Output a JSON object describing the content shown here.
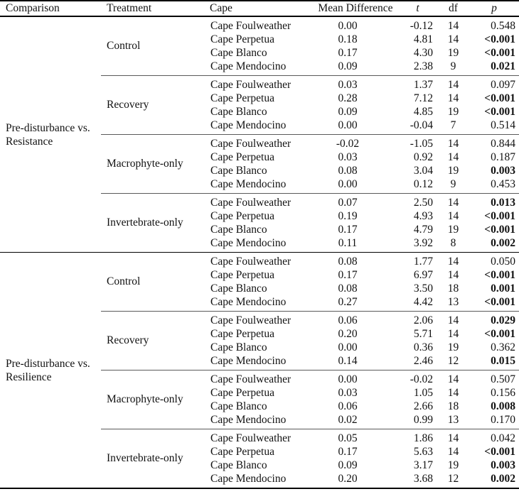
{
  "table": {
    "columns": [
      "Comparison",
      "Treatment",
      "Cape",
      "Mean Difference",
      "t",
      "df",
      "p"
    ],
    "sections": [
      {
        "comparison": "Pre-disturbance vs. Resistance",
        "treatments": [
          {
            "name": "Control",
            "rows": [
              {
                "cape": "Cape Foulweather",
                "mean_difference": "0.00",
                "t": "-0.12",
                "df": "14",
                "p": "0.548",
                "p_bold": false
              },
              {
                "cape": "Cape Perpetua",
                "mean_difference": "0.18",
                "t": "4.81",
                "df": "14",
                "p": "<0.001",
                "p_bold": true
              },
              {
                "cape": "Cape Blanco",
                "mean_difference": "0.17",
                "t": "4.30",
                "df": "19",
                "p": "<0.001",
                "p_bold": true
              },
              {
                "cape": "Cape Mendocino",
                "mean_difference": "0.09",
                "t": "2.38",
                "df": "9",
                "p": "0.021",
                "p_bold": true
              }
            ]
          },
          {
            "name": "Recovery",
            "rows": [
              {
                "cape": "Cape Foulweather",
                "mean_difference": "0.03",
                "t": "1.37",
                "df": "14",
                "p": "0.097",
                "p_bold": false
              },
              {
                "cape": "Cape Perpetua",
                "mean_difference": "0.28",
                "t": "7.12",
                "df": "14",
                "p": "<0.001",
                "p_bold": true
              },
              {
                "cape": "Cape Blanco",
                "mean_difference": "0.09",
                "t": "4.85",
                "df": "19",
                "p": "<0.001",
                "p_bold": true
              },
              {
                "cape": "Cape Mendocino",
                "mean_difference": "0.00",
                "t": "-0.04",
                "df": "7",
                "p": "0.514",
                "p_bold": false
              }
            ]
          },
          {
            "name": "Macrophyte-only",
            "rows": [
              {
                "cape": "Cape Foulweather",
                "mean_difference": "-0.02",
                "t": "-1.05",
                "df": "14",
                "p": "0.844",
                "p_bold": false
              },
              {
                "cape": "Cape Perpetua",
                "mean_difference": "0.03",
                "t": "0.92",
                "df": "14",
                "p": "0.187",
                "p_bold": false
              },
              {
                "cape": "Cape Blanco",
                "mean_difference": "0.08",
                "t": "3.04",
                "df": "19",
                "p": "0.003",
                "p_bold": true
              },
              {
                "cape": "Cape Mendocino",
                "mean_difference": "0.00",
                "t": "0.12",
                "df": "9",
                "p": "0.453",
                "p_bold": false
              }
            ]
          },
          {
            "name": "Invertebrate-only",
            "rows": [
              {
                "cape": "Cape Foulweather",
                "mean_difference": "0.07",
                "t": "2.50",
                "df": "14",
                "p": "0.013",
                "p_bold": true
              },
              {
                "cape": "Cape Perpetua",
                "mean_difference": "0.19",
                "t": "4.93",
                "df": "14",
                "p": "<0.001",
                "p_bold": true
              },
              {
                "cape": "Cape Blanco",
                "mean_difference": "0.17",
                "t": "4.79",
                "df": "19",
                "p": "<0.001",
                "p_bold": true
              },
              {
                "cape": "Cape Mendocino",
                "mean_difference": "0.11",
                "t": "3.92",
                "df": "8",
                "p": "0.002",
                "p_bold": true
              }
            ]
          }
        ]
      },
      {
        "comparison": "Pre-disturbance vs. Resilience",
        "treatments": [
          {
            "name": "Control",
            "rows": [
              {
                "cape": "Cape Foulweather",
                "mean_difference": "0.08",
                "t": "1.77",
                "df": "14",
                "p": "0.050",
                "p_bold": false
              },
              {
                "cape": "Cape Perpetua",
                "mean_difference": "0.17",
                "t": "6.97",
                "df": "14",
                "p": "<0.001",
                "p_bold": true
              },
              {
                "cape": "Cape Blanco",
                "mean_difference": "0.08",
                "t": "3.50",
                "df": "18",
                "p": "0.001",
                "p_bold": true
              },
              {
                "cape": "Cape Mendocino",
                "mean_difference": "0.27",
                "t": "4.42",
                "df": "13",
                "p": "<0.001",
                "p_bold": true
              }
            ]
          },
          {
            "name": "Recovery",
            "rows": [
              {
                "cape": "Cape Foulweather",
                "mean_difference": "0.06",
                "t": "2.06",
                "df": "14",
                "p": "0.029",
                "p_bold": true
              },
              {
                "cape": "Cape Perpetua",
                "mean_difference": "0.20",
                "t": "5.71",
                "df": "14",
                "p": "<0.001",
                "p_bold": true
              },
              {
                "cape": "Cape Blanco",
                "mean_difference": "0.00",
                "t": "0.36",
                "df": "19",
                "p": "0.362",
                "p_bold": false
              },
              {
                "cape": "Cape Mendocino",
                "mean_difference": "0.14",
                "t": "2.46",
                "df": "12",
                "p": "0.015",
                "p_bold": true
              }
            ]
          },
          {
            "name": "Macrophyte-only",
            "rows": [
              {
                "cape": "Cape Foulweather",
                "mean_difference": "0.00",
                "t": "-0.02",
                "df": "14",
                "p": "0.507",
                "p_bold": false
              },
              {
                "cape": "Cape Perpetua",
                "mean_difference": "0.03",
                "t": "1.05",
                "df": "14",
                "p": "0.156",
                "p_bold": false
              },
              {
                "cape": "Cape Blanco",
                "mean_difference": "0.06",
                "t": "2.66",
                "df": "18",
                "p": "0.008",
                "p_bold": true
              },
              {
                "cape": "Cape Mendocino",
                "mean_difference": "0.02",
                "t": "0.99",
                "df": "13",
                "p": "0.170",
                "p_bold": false
              }
            ]
          },
          {
            "name": "Invertebrate-only",
            "rows": [
              {
                "cape": "Cape Foulweather",
                "mean_difference": "0.05",
                "t": "1.86",
                "df": "14",
                "p": "0.042",
                "p_bold": false
              },
              {
                "cape": "Cape Perpetua",
                "mean_difference": "0.17",
                "t": "5.63",
                "df": "14",
                "p": "<0.001",
                "p_bold": true
              },
              {
                "cape": "Cape Blanco",
                "mean_difference": "0.09",
                "t": "3.17",
                "df": "19",
                "p": "0.003",
                "p_bold": true
              },
              {
                "cape": "Cape Mendocino",
                "mean_difference": "0.20",
                "t": "3.68",
                "df": "12",
                "p": "0.002",
                "p_bold": true
              }
            ]
          }
        ]
      }
    ]
  }
}
